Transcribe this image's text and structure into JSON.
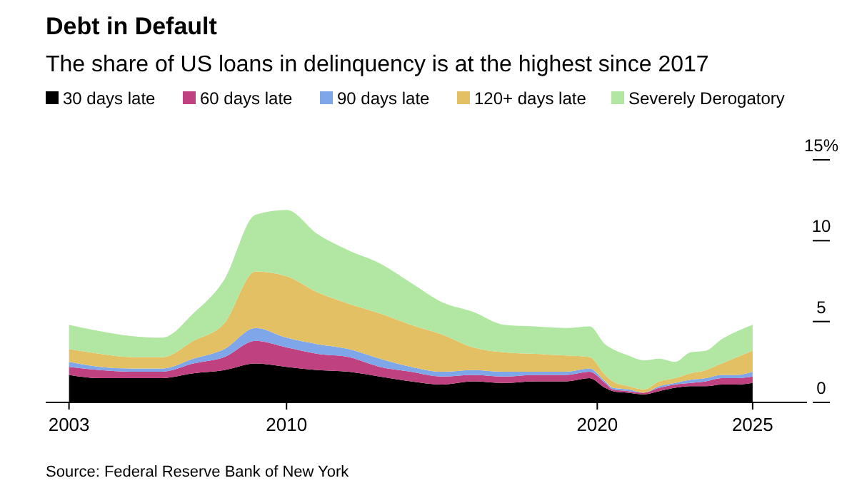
{
  "chart_data": {
    "type": "area",
    "stacked": true,
    "title": "Debt in Default",
    "subtitle": "The share of US loans in delinquency is at the highest since 2017",
    "x": [
      2003,
      2004,
      2005,
      2006,
      2007,
      2008,
      2009,
      2010,
      2011,
      2012,
      2013,
      2014,
      2015,
      2016,
      2017,
      2018,
      2019,
      2019.75,
      2020.25,
      2020.5,
      2021,
      2021.5,
      2022,
      2022.5,
      2023,
      2023.5,
      2024,
      2024.5,
      2025
    ],
    "series": [
      {
        "name": "30 days late",
        "color": "#000000",
        "values": [
          1.7,
          1.5,
          1.5,
          1.5,
          1.8,
          2.0,
          2.4,
          2.2,
          2.0,
          1.9,
          1.6,
          1.3,
          1.1,
          1.3,
          1.2,
          1.3,
          1.3,
          1.5,
          0.9,
          0.7,
          0.6,
          0.5,
          0.7,
          0.9,
          1.0,
          1.0,
          1.1,
          1.1,
          1.2
        ]
      },
      {
        "name": "60 days late",
        "color": "#c0417f",
        "values": [
          0.5,
          0.5,
          0.4,
          0.4,
          0.6,
          0.8,
          1.4,
          1.2,
          1.0,
          0.9,
          0.6,
          0.6,
          0.5,
          0.4,
          0.4,
          0.4,
          0.4,
          0.4,
          0.3,
          0.1,
          0.1,
          0.1,
          0.2,
          0.2,
          0.2,
          0.3,
          0.4,
          0.4,
          0.4
        ]
      },
      {
        "name": "90 days late",
        "color": "#7fa6e8",
        "values": [
          0.3,
          0.2,
          0.2,
          0.2,
          0.3,
          0.5,
          0.8,
          0.6,
          0.6,
          0.5,
          0.5,
          0.3,
          0.3,
          0.3,
          0.3,
          0.2,
          0.2,
          0.2,
          0.1,
          0.1,
          0.1,
          0.0,
          0.1,
          0.1,
          0.2,
          0.2,
          0.2,
          0.2,
          0.3
        ]
      },
      {
        "name": "120+ days late",
        "color": "#e3c063",
        "values": [
          0.8,
          0.8,
          0.7,
          0.7,
          1.1,
          1.6,
          3.5,
          3.8,
          3.2,
          2.8,
          2.8,
          2.6,
          2.3,
          1.4,
          1.2,
          1.1,
          1.0,
          0.7,
          0.4,
          0.4,
          0.2,
          0.2,
          0.3,
          0.3,
          0.4,
          0.5,
          0.7,
          1.1,
          1.3
        ]
      },
      {
        "name": "Severely Derogatory",
        "color": "#b2e7a3",
        "values": [
          1.5,
          1.4,
          1.3,
          1.2,
          1.7,
          2.7,
          3.5,
          4.1,
          3.6,
          3.3,
          3.1,
          2.6,
          2.0,
          2.2,
          1.7,
          1.7,
          1.7,
          1.9,
          1.9,
          2.0,
          1.9,
          1.8,
          1.4,
          1.0,
          1.3,
          1.2,
          1.5,
          1.6,
          1.6
        ]
      }
    ],
    "xlim": [
      2002.25,
      2026.75
    ],
    "xticks": [
      2003,
      2010,
      2020,
      2025
    ],
    "ylim": [
      0,
      15
    ],
    "yticks": [
      0,
      5,
      10,
      {
        "value": 15,
        "label": "15%"
      }
    ],
    "grid": false,
    "legend": "top left",
    "annotations": [
      "Source: Federal Reserve Bank of New York"
    ]
  }
}
